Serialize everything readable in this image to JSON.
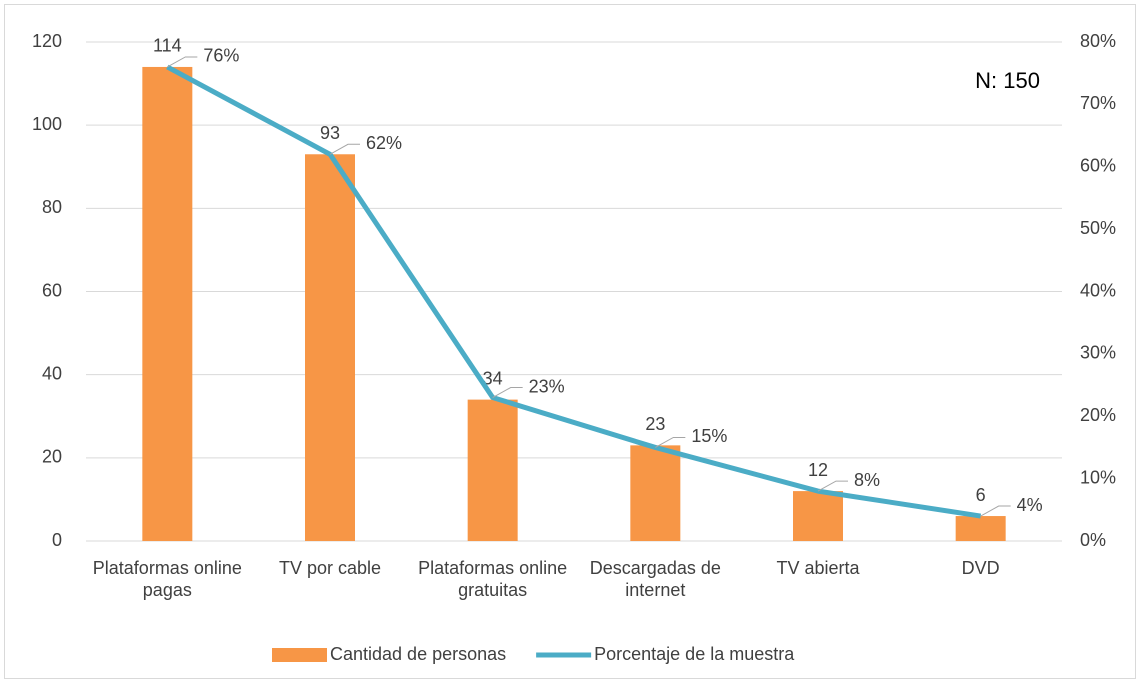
{
  "chart_data": {
    "type": "bar_line",
    "annotation": "N: 150",
    "categories": [
      "Plataformas online pagas",
      "TV por cable",
      "Plataformas online gratuitas",
      "Descargadas de internet",
      "TV abierta",
      "DVD"
    ],
    "series": [
      {
        "name": "Cantidad de personas",
        "type": "bar",
        "color": "#f79646",
        "values": [
          114,
          93,
          34,
          23,
          12,
          6
        ]
      },
      {
        "name": "Porcentaje de la muestra",
        "type": "line",
        "axis": "y2",
        "color": "#4bacc6",
        "values": [
          76,
          62,
          23,
          15,
          8,
          4
        ],
        "value_labels": [
          "76%",
          "62%",
          "23%",
          "15%",
          "8%",
          "4%"
        ]
      }
    ],
    "ylim": [
      0,
      120
    ],
    "yticks": [
      0,
      20,
      40,
      60,
      80,
      100,
      120
    ],
    "y2lim": [
      0,
      80
    ],
    "y2ticks": [
      {
        "value": 0,
        "label": "0%"
      },
      {
        "value": 10,
        "label": "10%"
      },
      {
        "value": 20,
        "label": "20%"
      },
      {
        "value": 30,
        "label": "30%"
      },
      {
        "value": 40,
        "label": "40%"
      },
      {
        "value": 50,
        "label": "50%"
      },
      {
        "value": 60,
        "label": "60%"
      },
      {
        "value": 70,
        "label": "70%"
      },
      {
        "value": 80,
        "label": "80%"
      }
    ],
    "grid": true,
    "legend": "bottom"
  }
}
